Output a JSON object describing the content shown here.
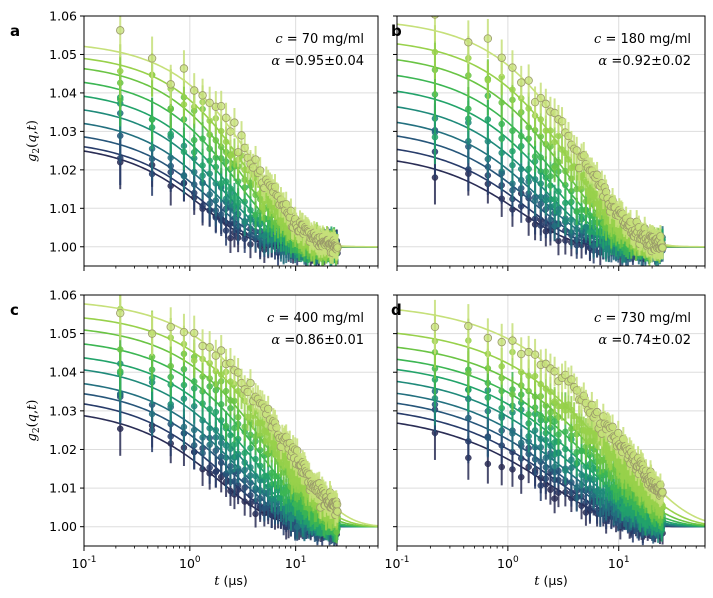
{
  "figure": {
    "ylabel": "g2(q,t)",
    "xlabel": "t (μs)",
    "palette": [
      "#2a2d55",
      "#283c6a",
      "#27567a",
      "#23707f",
      "#1f8a7a",
      "#22a36a",
      "#3cb653",
      "#6ac444",
      "#98d14b",
      "#c6e07a",
      "#d9e4a0"
    ]
  },
  "chart_data": [
    {
      "type": "scatter",
      "panel": "a",
      "label": "a",
      "annotation_c": "c = 70 mg/ml",
      "annotation_alpha": "α =0.95±0.04",
      "alpha_value": 0.95,
      "alpha_err": 0.04,
      "tau": [
        1.4,
        1.55,
        1.75,
        1.95,
        2.2,
        2.5,
        2.9,
        3.3,
        3.8,
        4.5
      ],
      "amplitudes": [
        0.027,
        0.028,
        0.0305,
        0.034,
        0.0375,
        0.041,
        0.0445,
        0.048,
        0.0505,
        0.0535
      ],
      "xscale": "log",
      "xlim": [
        0.1,
        60
      ],
      "ylim": [
        0.995,
        1.06
      ],
      "xticks": [
        "10^-1",
        "10^0",
        "10^1"
      ],
      "yticks": [
        "1.00",
        "1.01",
        "1.02",
        "1.03",
        "1.04",
        "1.05",
        "1.06"
      ],
      "show_ylabel": true,
      "show_xlabel": false,
      "grid": true
    },
    {
      "type": "scatter",
      "panel": "b",
      "label": "b",
      "annotation_c": "c = 180 mg/ml",
      "annotation_alpha": "α =0.92±0.02",
      "alpha_value": 0.92,
      "alpha_err": 0.02,
      "tau": [
        1.3,
        1.5,
        1.7,
        1.95,
        2.25,
        2.6,
        3.0,
        3.5,
        4.1,
        4.9
      ],
      "amplitudes": [
        0.0245,
        0.0275,
        0.031,
        0.0345,
        0.0385,
        0.0425,
        0.0465,
        0.0505,
        0.0545,
        0.0595
      ],
      "xscale": "log",
      "xlim": [
        0.1,
        60
      ],
      "ylim": [
        0.995,
        1.06
      ],
      "xticks": [
        "10^-1",
        "10^0",
        "10^1"
      ],
      "yticks": [
        "1.00",
        "1.01",
        "1.02",
        "1.03",
        "1.04",
        "1.05",
        "1.06"
      ],
      "show_ylabel": false,
      "show_xlabel": false,
      "grid": true
    },
    {
      "type": "scatter",
      "panel": "c",
      "label": "c",
      "annotation_c": "c = 400 mg/ml",
      "annotation_alpha": "α =0.86±0.01",
      "alpha_value": 0.86,
      "alpha_err": 0.01,
      "tau": [
        2.0,
        2.3,
        2.7,
        3.1,
        3.6,
        4.2,
        4.9,
        5.8,
        6.8,
        8.2
      ],
      "amplitudes": [
        0.031,
        0.034,
        0.0365,
        0.039,
        0.0425,
        0.0455,
        0.049,
        0.0525,
        0.0555,
        0.059
      ],
      "xscale": "log",
      "xlim": [
        0.1,
        60
      ],
      "ylim": [
        0.995,
        1.06
      ],
      "xticks": [
        "10^-1",
        "10^0",
        "10^1"
      ],
      "yticks": [
        "1.00",
        "1.01",
        "1.02",
        "1.03",
        "1.04",
        "1.05",
        "1.06"
      ],
      "show_ylabel": true,
      "show_xlabel": true,
      "grid": true
    },
    {
      "type": "scatter",
      "panel": "d",
      "label": "d",
      "annotation_c": "c = 730 mg/ml",
      "annotation_alpha": "α =0.74±0.02",
      "alpha_value": 0.74,
      "alpha_err": 0.02,
      "tau": [
        2.4,
        2.8,
        3.2,
        3.7,
        4.3,
        5.0,
        5.9,
        7.0,
        8.4,
        10.5
      ],
      "amplitudes": [
        0.0295,
        0.032,
        0.0345,
        0.037,
        0.04,
        0.043,
        0.0455,
        0.0485,
        0.052,
        0.058
      ],
      "xscale": "log",
      "xlim": [
        0.1,
        60
      ],
      "ylim": [
        0.995,
        1.06
      ],
      "xticks": [
        "10^-1",
        "10^0",
        "10^1"
      ],
      "yticks": [
        "1.00",
        "1.01",
        "1.02",
        "1.03",
        "1.04",
        "1.05",
        "1.06"
      ],
      "show_ylabel": false,
      "show_xlabel": true,
      "grid": true
    }
  ]
}
